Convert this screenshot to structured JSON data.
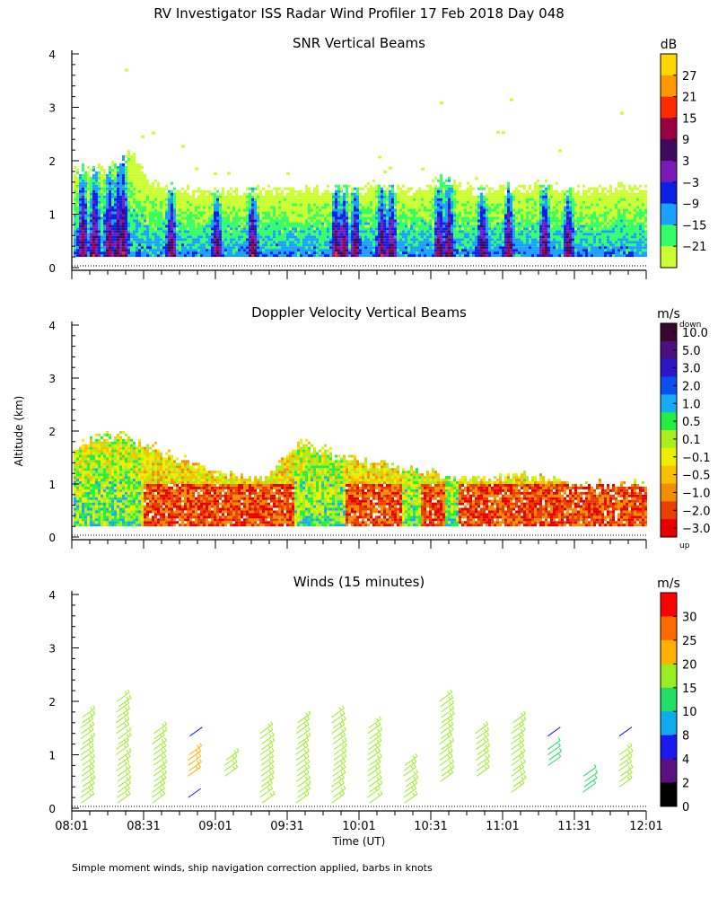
{
  "figure": {
    "title": "RV Investigator ISS Radar Wind Profiler  17 Feb 2018 Day 048",
    "ylabel": "Altitude (km)",
    "xlabel": "Time (UT)",
    "footnote": "Simple moment winds, ship navigation correction applied, barbs in knots"
  },
  "chart_data": [
    {
      "type": "heatmap",
      "title": "SNR Vertical Beams",
      "ylabel": "Altitude (km)",
      "ylim": [
        0,
        4
      ],
      "yticks": [
        "0",
        "1",
        "2",
        "3",
        "4"
      ],
      "x_start_min": 481,
      "x_end_min": 721,
      "xlim_labels": [
        "08:01",
        "12:01"
      ],
      "colorbar": {
        "unit": "dB",
        "labels": [
          "27",
          "21",
          "15",
          "9",
          "3",
          "−3",
          "−9",
          "−15",
          "−21"
        ],
        "colors": [
          "#ffd700",
          "#ff9900",
          "#ff2a00",
          "#9a0040",
          "#3d0a5c",
          "#7a1ab8",
          "#0a20e6",
          "#1aa0ff",
          "#33ff66",
          "#ccff33"
        ]
      },
      "profile": {
        "times_min": [
          481,
          488,
          497,
          505,
          515,
          530,
          545,
          560,
          575,
          590,
          600,
          612,
          622,
          637,
          648,
          660,
          675,
          690,
          705,
          721
        ],
        "top_km": [
          1.85,
          1.9,
          1.9,
          2.2,
          1.6,
          1.45,
          1.45,
          1.5,
          1.45,
          1.5,
          1.5,
          1.6,
          1.45,
          1.7,
          1.5,
          1.5,
          1.6,
          1.5,
          1.5,
          1.55
        ]
      },
      "convective_columns_min": [
        485,
        490,
        496,
        500,
        502,
        522,
        541,
        556,
        591,
        594,
        599,
        610,
        614,
        634,
        638,
        652,
        663,
        678,
        688
      ]
    },
    {
      "type": "heatmap",
      "title": "Doppler Velocity Vertical Beams",
      "ylabel": "Altitude (km)",
      "ylim": [
        0,
        4
      ],
      "yticks": [
        "0",
        "1",
        "2",
        "3",
        "4"
      ],
      "colorbar": {
        "unit": "m/s",
        "top_note": "down",
        "bottom_note": "up",
        "labels": [
          "10.0",
          "5.0",
          "3.0",
          "2.0",
          "1.0",
          "0.5",
          "0.1",
          "−0.1",
          "−0.5",
          "−1.0",
          "−2.0",
          "−3.0"
        ],
        "colors": [
          "#3a0630",
          "#4a1080",
          "#2a18c8",
          "#0a50ee",
          "#18aaf6",
          "#22ee44",
          "#aaee22",
          "#eeee00",
          "#f8c000",
          "#f09000",
          "#e84000",
          "#e80000"
        ]
      },
      "profile": {
        "times_min": [
          481,
          500,
          520,
          545,
          560,
          575,
          590,
          610,
          630,
          650,
          670,
          690,
          721
        ],
        "top_km": [
          1.7,
          2.0,
          1.6,
          1.2,
          1.1,
          1.8,
          1.6,
          1.4,
          1.2,
          1.1,
          1.2,
          1.0,
          1.0
        ]
      },
      "sinking_regions_min": [
        [
          481,
          509
        ],
        [
          574,
          595
        ],
        [
          618,
          626
        ],
        [
          636,
          642
        ]
      ]
    },
    {
      "type": "scatter",
      "title": "Winds (15 minutes)",
      "ylabel": "Altitude (km)",
      "xlabel": "Time (UT)",
      "ylim": [
        0,
        4
      ],
      "yticks": [
        "0",
        "1",
        "2",
        "3",
        "4"
      ],
      "xtick_labels": [
        "08:01",
        "08:31",
        "09:01",
        "09:31",
        "10:01",
        "10:31",
        "11:01",
        "11:31",
        "12:01"
      ],
      "colorbar": {
        "unit": "m/s",
        "labels": [
          "30",
          "25",
          "20",
          "15",
          "10",
          "8",
          "4",
          "2",
          "0"
        ],
        "bands": [
          {
            "from": 30,
            "to": 35,
            "color": "#ff0000"
          },
          {
            "from": 25,
            "to": 30,
            "color": "#ff6a00"
          },
          {
            "from": 20,
            "to": 25,
            "color": "#ffb000"
          },
          {
            "from": 15,
            "to": 20,
            "color": "#99ee22"
          },
          {
            "from": 10,
            "to": 15,
            "color": "#22dd66"
          },
          {
            "from": 8,
            "to": 10,
            "color": "#11aaee"
          },
          {
            "from": 4,
            "to": 8,
            "color": "#1a1aee"
          },
          {
            "from": 2,
            "to": 4,
            "color": "#5a1080"
          },
          {
            "from": 0,
            "to": 2,
            "color": "#000000"
          }
        ]
      },
      "profiles": [
        {
          "time_min": 485,
          "bottom_km": 0.1,
          "top_km": 1.75,
          "speed": 17
        },
        {
          "time_min": 500,
          "bottom_km": 0.1,
          "top_km": 2.0,
          "speed": 17
        },
        {
          "time_min": 515,
          "bottom_km": 0.1,
          "top_km": 1.4,
          "speed": 16
        },
        {
          "time_min": 530,
          "bottom_km": 0.6,
          "top_km": 1.0,
          "speed": 21
        },
        {
          "time_min": 530,
          "bottom_km": 0.2,
          "top_km": 0.2,
          "speed": 6
        },
        {
          "time_min": 530,
          "bottom_km": 1.35,
          "top_km": 1.35,
          "speed": 6
        },
        {
          "time_min": 545,
          "bottom_km": 0.6,
          "top_km": 0.95,
          "speed": 17
        },
        {
          "time_min": 560,
          "bottom_km": 0.1,
          "top_km": 1.45,
          "speed": 17
        },
        {
          "time_min": 575,
          "bottom_km": 0.1,
          "top_km": 1.6,
          "speed": 16
        },
        {
          "time_min": 590,
          "bottom_km": 0.1,
          "top_km": 1.75,
          "speed": 16
        },
        {
          "time_min": 605,
          "bottom_km": 0.1,
          "top_km": 1.55,
          "speed": 17
        },
        {
          "time_min": 620,
          "bottom_km": 0.1,
          "top_km": 0.8,
          "speed": 17
        },
        {
          "time_min": 635,
          "bottom_km": 0.5,
          "top_km": 2.05,
          "speed": 17
        },
        {
          "time_min": 650,
          "bottom_km": 0.6,
          "top_km": 1.4,
          "speed": 16
        },
        {
          "time_min": 665,
          "bottom_km": 0.3,
          "top_km": 1.6,
          "speed": 19
        },
        {
          "time_min": 680,
          "bottom_km": 1.35,
          "top_km": 1.35,
          "speed": 6
        },
        {
          "time_min": 680,
          "bottom_km": 0.8,
          "top_km": 1.1,
          "speed": 13
        },
        {
          "time_min": 695,
          "bottom_km": 0.3,
          "top_km": 0.6,
          "speed": 13
        },
        {
          "time_min": 710,
          "bottom_km": 0.4,
          "top_km": 1.0,
          "speed": 16
        },
        {
          "time_min": 710,
          "bottom_km": 1.35,
          "top_km": 1.35,
          "speed": 6
        }
      ]
    }
  ]
}
